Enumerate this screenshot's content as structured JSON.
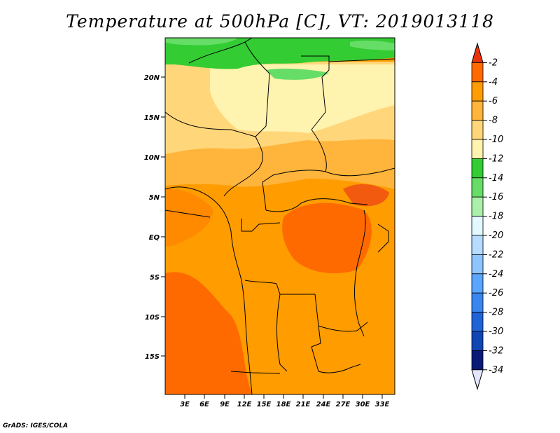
{
  "title": "Temperature at 500hPa [C], VT: 2019013118",
  "credit": "GrADS: IGES/COLA",
  "lat_labels": [
    "20N",
    "15N",
    "10N",
    "5N",
    "EQ",
    "5S",
    "10S",
    "15S"
  ],
  "lon_labels": [
    "3E",
    "6E",
    "9E",
    "12E",
    "15E",
    "18E",
    "21E",
    "24E",
    "27E",
    "30E",
    "33E"
  ],
  "colorbar": {
    "labels": [
      "-2",
      "-4",
      "-6",
      "-8",
      "-10",
      "-12",
      "-14",
      "-16",
      "-18",
      "-20",
      "-22",
      "-24",
      "-26",
      "-28",
      "-30",
      "-32",
      "-34"
    ],
    "colors": [
      "#e8330a",
      "#ff6a00",
      "#ff9c00",
      "#ffb43c",
      "#ffd77a",
      "#fff3b0",
      "#33cc33",
      "#66dd66",
      "#aaf0aa",
      "#e4f8ff",
      "#b6dcff",
      "#8ec4ff",
      "#5aa6ff",
      "#3a86f0",
      "#1e64d8",
      "#0f46b4",
      "#0a1a78",
      "#e4e4ff"
    ]
  }
}
